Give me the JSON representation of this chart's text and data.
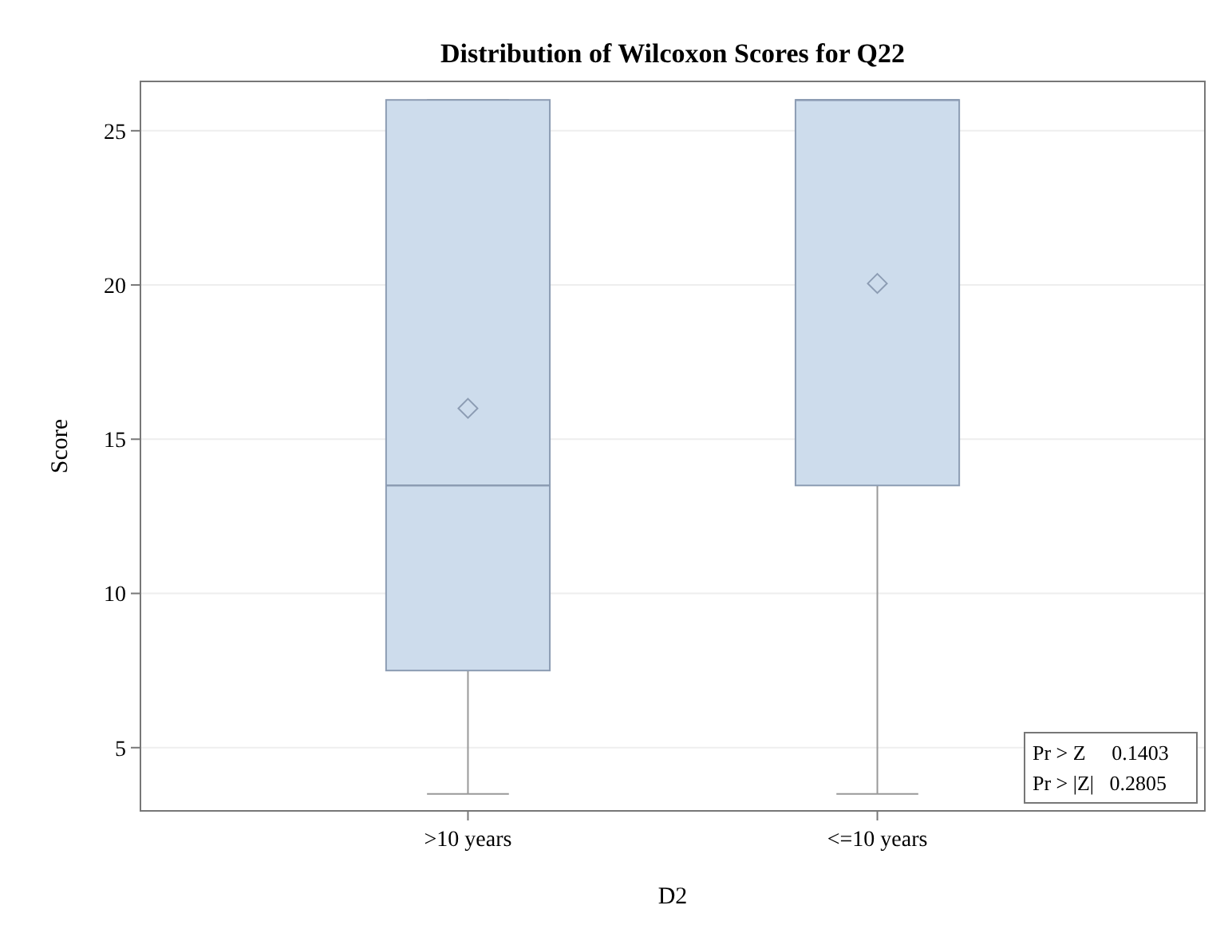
{
  "chart_data": {
    "type": "box",
    "title": "Distribution of Wilcoxon Scores for Q22",
    "xlabel": "D2",
    "ylabel": "Score",
    "categories": [
      ">10 years",
      "<=10 years"
    ],
    "boxes": [
      {
        "low": 3.5,
        "q1": 7.5,
        "median": 13.5,
        "q3": 26,
        "high": 26,
        "mean": 16
      },
      {
        "low": 3.5,
        "q1": 13.5,
        "median": 26,
        "q3": 26,
        "high": 26,
        "mean": 20.05
      }
    ],
    "color": "#cddcec",
    "ylim": [
      2.95,
      26.6
    ],
    "yticks": [
      5,
      10,
      15,
      20,
      25
    ],
    "grid": "y",
    "marker": "diamond",
    "annotations": [
      "Pr > Z     0.1403",
      "Pr > |Z|   0.2805"
    ]
  }
}
